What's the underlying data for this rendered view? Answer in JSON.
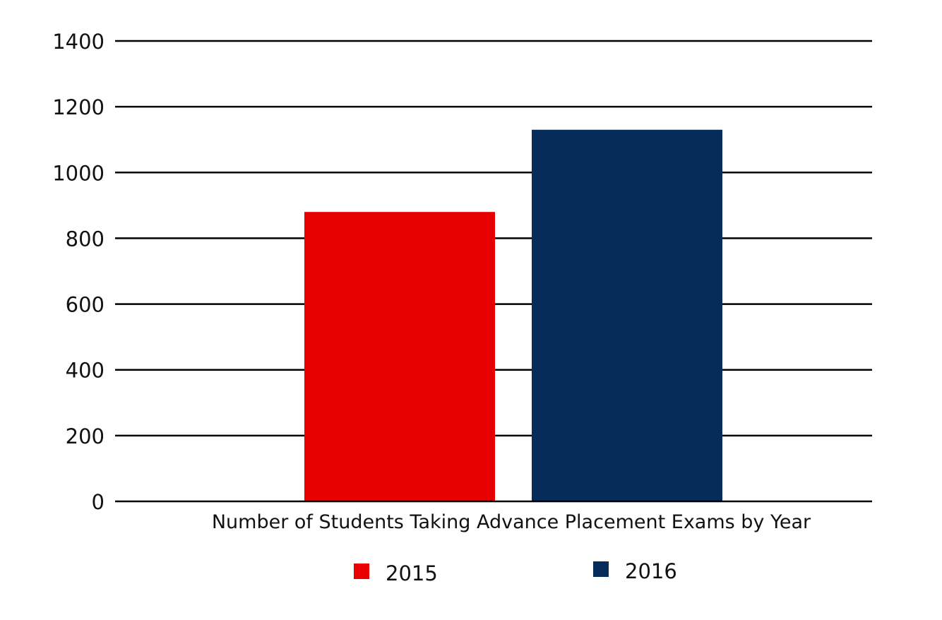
{
  "chart_data": {
    "type": "bar",
    "title": "",
    "xlabel": "Number of Students Taking Advance Placement Exams by Year",
    "ylabel": "",
    "ylim": [
      0,
      1400
    ],
    "yticks": [
      0,
      200,
      400,
      600,
      800,
      1000,
      1200,
      1400
    ],
    "grid": true,
    "legend_position": "bottom",
    "categories": [
      "Number of Students Taking Advance Placement Exams by Year"
    ],
    "series": [
      {
        "name": "2015",
        "values": [
          880
        ],
        "color": "#e80000"
      },
      {
        "name": "2016",
        "values": [
          1130
        ],
        "color": "#062c5c"
      }
    ]
  }
}
